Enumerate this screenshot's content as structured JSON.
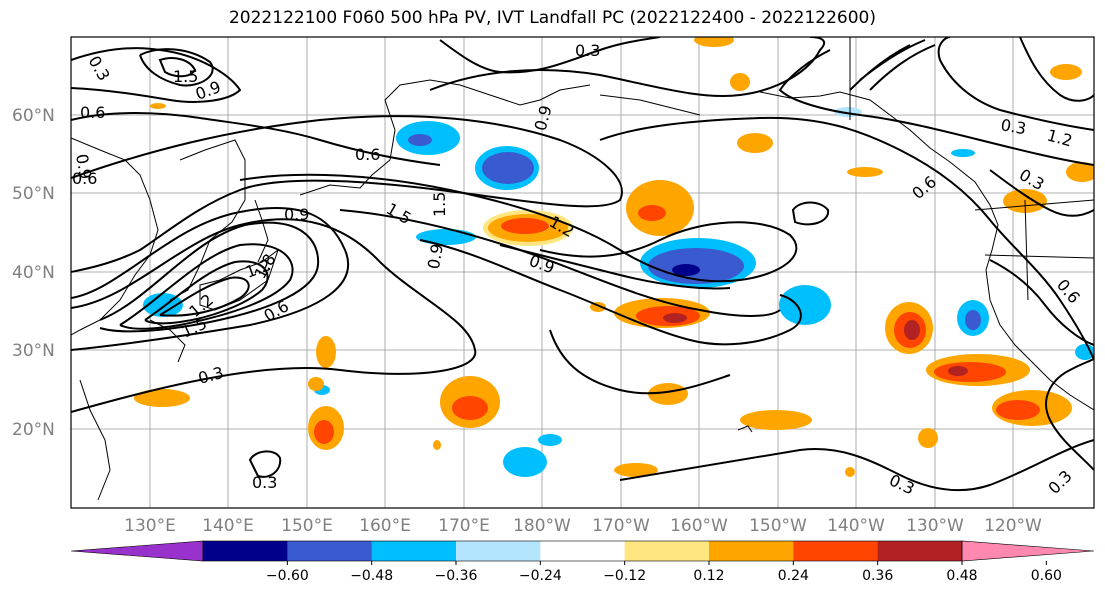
{
  "title": "2022122100 F060 500 hPa PV, IVT Landfall PC (2022122400 - 2022122600)",
  "lat_labels": [
    "60°N",
    "50°N",
    "40°N",
    "30°N",
    "20°N"
  ],
  "lon_labels": [
    "130°E",
    "140°E",
    "150°E",
    "160°E",
    "170°E",
    "180°W",
    "170°W",
    "160°W",
    "150°W",
    "140°W",
    "130°W",
    "120°W"
  ],
  "colorbar": {
    "ticks": [
      "−0.60",
      "−0.48",
      "−0.36",
      "−0.24",
      "−0.12",
      "0.12",
      "0.24",
      "0.36",
      "0.48",
      "0.60"
    ],
    "colors": [
      "#9932cc",
      "#00008b",
      "#3a5bd0",
      "#00bfff",
      "#b3e5fc",
      "#ffffff",
      "#ffe680",
      "#ffa500",
      "#ff4500",
      "#b22222",
      "#ff88b0"
    ]
  },
  "contour_labels": [
    "0.3",
    "1.5",
    "0.9",
    "0.6",
    "0.9",
    "0.6",
    "0.9",
    "1.5",
    "1.5",
    "0.9",
    "0.6",
    "0.9",
    "1.2",
    "1.8",
    "1.2",
    "1.5",
    "0.6",
    "0.3",
    "0.3",
    "0.3",
    "0.9",
    "1.2",
    "0.6",
    "0.3",
    "0.6",
    "0.3",
    "0.3",
    "1.2",
    "0.3"
  ]
}
